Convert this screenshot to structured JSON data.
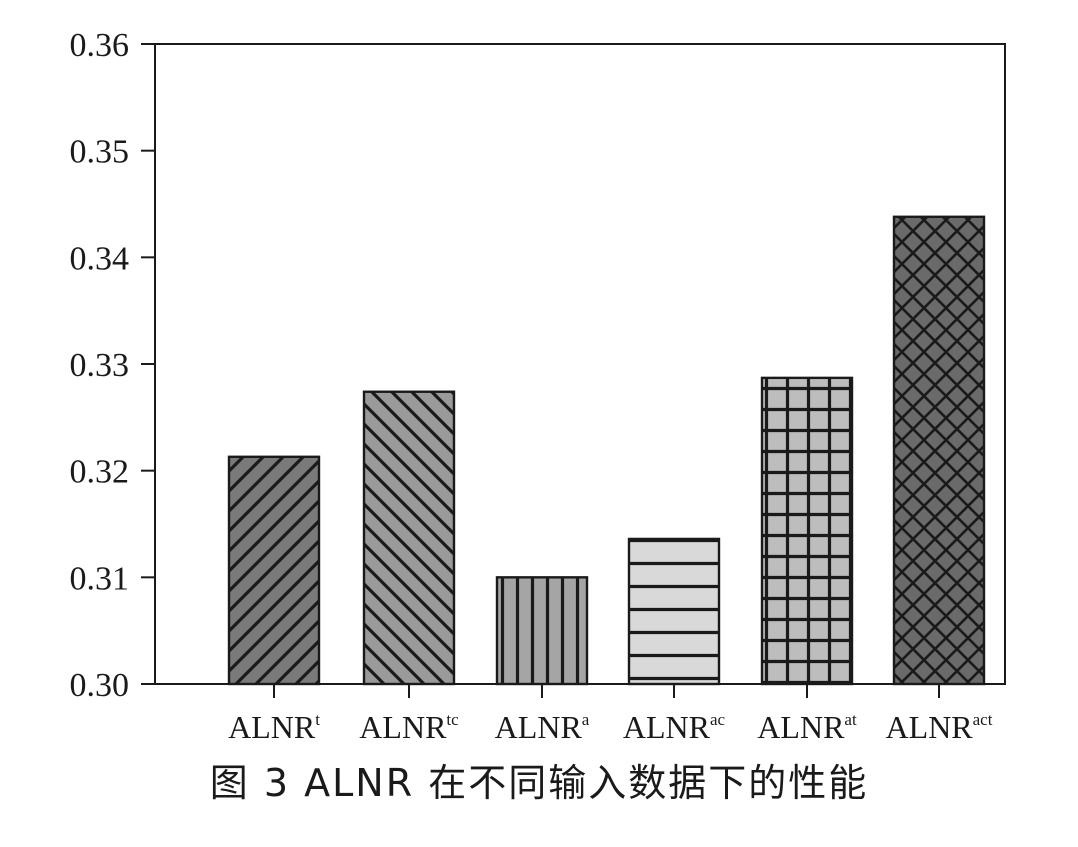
{
  "caption": "图 3   ALNR 在不同输入数据下的性能",
  "chart_data": {
    "type": "bar",
    "title": "",
    "xlabel": "",
    "ylabel": "",
    "ylim": [
      0.3,
      0.36
    ],
    "yticks": [
      "0.30",
      "0.31",
      "0.32",
      "0.33",
      "0.34",
      "0.35",
      "0.36"
    ],
    "grid": false,
    "categories": [
      {
        "base": "ALNR",
        "sup": "t"
      },
      {
        "base": "ALNR",
        "sup": "tc"
      },
      {
        "base": "ALNR",
        "sup": "a"
      },
      {
        "base": "ALNR",
        "sup": "ac"
      },
      {
        "base": "ALNR",
        "sup": "at"
      },
      {
        "base": "ALNR",
        "sup": "act"
      }
    ],
    "values": [
      0.3213,
      0.3274,
      0.31,
      0.3136,
      0.3287,
      0.3438
    ],
    "bar_fill_colors": [
      "#7a7a7a",
      "#9a9a9a",
      "#a5a5a5",
      "#d9d9d9",
      "#bdbdbd",
      "#6a6a6a"
    ],
    "bar_patterns": [
      "diagonal-up",
      "diagonal-down",
      "vertical",
      "horizontal",
      "grid",
      "crosshatch"
    ]
  }
}
